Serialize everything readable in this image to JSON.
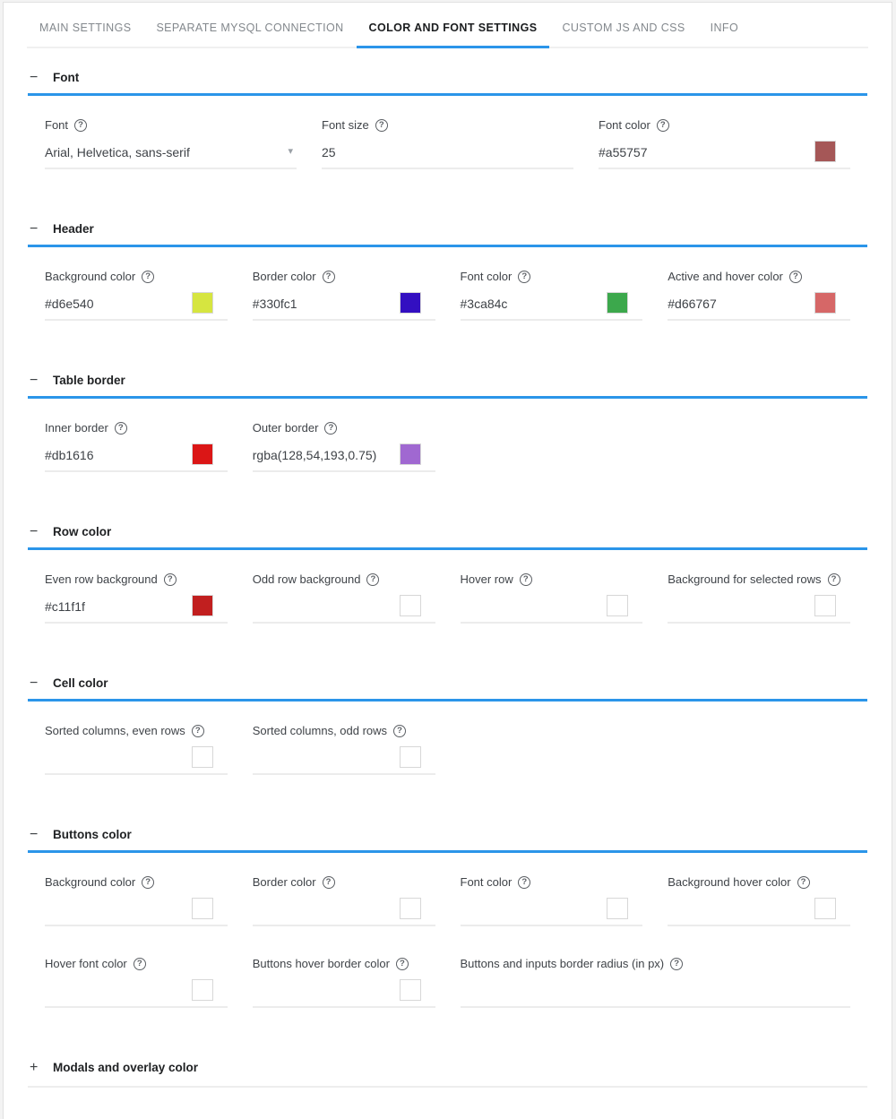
{
  "theme": {
    "accent": "#2b95e9"
  },
  "icons": {
    "help": "?",
    "collapse": "−",
    "expand": "+",
    "dropdown": "▾"
  },
  "tabs": [
    {
      "label": "MAIN SETTINGS"
    },
    {
      "label": "SEPARATE MYSQL CONNECTION"
    },
    {
      "label": "COLOR AND FONT SETTINGS"
    },
    {
      "label": "CUSTOM JS AND CSS"
    },
    {
      "label": "INFO"
    }
  ],
  "sections": [
    {
      "title": "Font",
      "fields": [
        {
          "label": "Font",
          "value": "Arial, Helvetica, sans-serif"
        },
        {
          "label": "Font size",
          "value": "25"
        },
        {
          "label": "Font color",
          "value": "#a55757",
          "swatch": "#a55757"
        }
      ]
    },
    {
      "title": "Header",
      "fields": [
        {
          "label": "Background color",
          "value": "#d6e540",
          "swatch": "#d6e540"
        },
        {
          "label": "Border color",
          "value": "#330fc1",
          "swatch": "#330fc1"
        },
        {
          "label": "Font color",
          "value": "#3ca84c",
          "swatch": "#3ca84c"
        },
        {
          "label": "Active and hover color",
          "value": "#d66767",
          "swatch": "#d66767"
        }
      ]
    },
    {
      "title": "Table border",
      "fields": [
        {
          "label": "Inner border",
          "value": "#db1616",
          "swatch": "#db1616"
        },
        {
          "label": "Outer border",
          "value": "rgba(128,54,193,0.75)",
          "swatch": "rgba(128,54,193,0.75)"
        }
      ]
    },
    {
      "title": "Row color",
      "fields": [
        {
          "label": "Even row background",
          "value": "#c11f1f",
          "swatch": "#c11f1f"
        },
        {
          "label": "Odd row background",
          "value": "",
          "swatch": ""
        },
        {
          "label": "Hover row",
          "value": "",
          "swatch": ""
        },
        {
          "label": "Background for selected rows",
          "value": "",
          "swatch": ""
        }
      ]
    },
    {
      "title": "Cell color",
      "fields": [
        {
          "label": "Sorted columns, even rows",
          "value": "",
          "swatch": ""
        },
        {
          "label": "Sorted columns, odd rows",
          "value": "",
          "swatch": ""
        }
      ]
    },
    {
      "title": "Buttons color",
      "fields": [
        {
          "label": "Background color",
          "value": "",
          "swatch": ""
        },
        {
          "label": "Border color",
          "value": "",
          "swatch": ""
        },
        {
          "label": "Font color",
          "value": "",
          "swatch": ""
        },
        {
          "label": "Background hover color",
          "value": "",
          "swatch": ""
        },
        {
          "label": "Hover font color",
          "value": "",
          "swatch": ""
        },
        {
          "label": "Buttons hover border color",
          "value": "",
          "swatch": ""
        },
        {
          "label": "Buttons and inputs border radius (in px)",
          "value": ""
        }
      ]
    },
    {
      "title": "Modals and overlay color"
    }
  ]
}
